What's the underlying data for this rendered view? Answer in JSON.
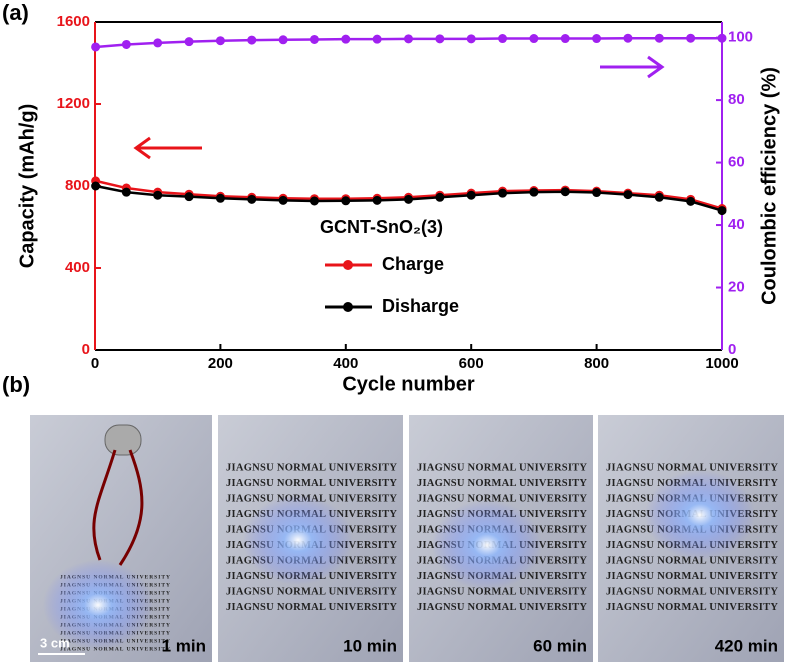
{
  "panel_labels": [
    "(a)",
    "(b)"
  ],
  "chart_data": {
    "type": "line",
    "x": [
      1,
      50,
      100,
      150,
      200,
      250,
      300,
      350,
      400,
      450,
      500,
      550,
      600,
      650,
      700,
      750,
      800,
      850,
      900,
      950,
      1000
    ],
    "series": [
      {
        "name": "Charge",
        "color": "#e8141a",
        "values": [
          825,
          790,
          770,
          760,
          750,
          745,
          740,
          738,
          738,
          740,
          745,
          755,
          765,
          775,
          778,
          780,
          775,
          765,
          755,
          735,
          690
        ]
      },
      {
        "name": "Disharge",
        "color": "#000000",
        "values": [
          800,
          770,
          755,
          748,
          740,
          735,
          730,
          727,
          728,
          730,
          735,
          745,
          755,
          765,
          770,
          772,
          768,
          758,
          745,
          725,
          680
        ]
      },
      {
        "name": "Coulombic efficiency",
        "color": "#a020f0",
        "axis": "y2",
        "values": [
          97,
          97.8,
          98.3,
          98.7,
          99,
          99.2,
          99.3,
          99.4,
          99.5,
          99.5,
          99.6,
          99.6,
          99.6,
          99.7,
          99.7,
          99.7,
          99.7,
          99.8,
          99.8,
          99.8,
          99.8
        ]
      }
    ],
    "legend_title": "GCNT-SnO₂(3)",
    "xlabel": "Cycle number",
    "ylabel": "Capacity (mAh/g)",
    "y2label": "Coulombic efficiency (%)",
    "xlim": [
      0,
      1000
    ],
    "xticks": [
      0,
      200,
      400,
      600,
      800,
      1000
    ],
    "ylim": [
      0,
      1600
    ],
    "yticks": [
      0,
      400,
      800,
      1200,
      1600
    ],
    "y2lim": [
      0,
      105
    ],
    "y2ticks": [
      0,
      20,
      40,
      60,
      80,
      100
    ]
  },
  "photos": {
    "paper_text": "JIAGNSU NORMAL UNIVERSITY",
    "scale_bar": "3 cm",
    "times": [
      "1 min",
      "10 min",
      "60 min",
      "420 min"
    ]
  }
}
